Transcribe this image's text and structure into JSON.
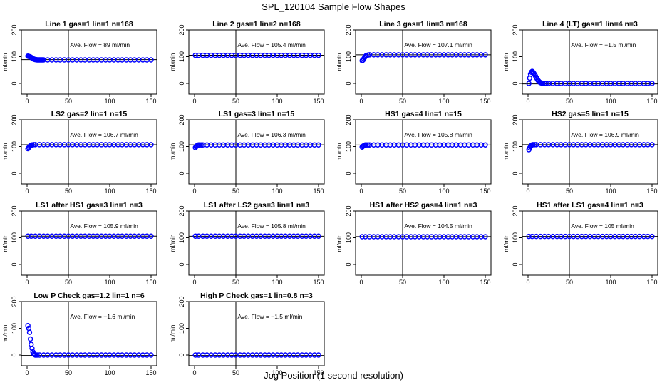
{
  "figure": {
    "title": "SPL_120104  Sample Flow Shapes",
    "xlabel": "Jog Position (1 second resolution)"
  },
  "colors": {
    "points": "#0000ff",
    "axes": "#000000"
  },
  "chart_data": [
    {
      "type": "scatter",
      "title": "Line 1 gas=1 lin=1 n=168",
      "ylabel": "ml/min",
      "xlim": [
        0,
        150
      ],
      "ylim": [
        -40,
        200
      ],
      "xticks": [
        "0",
        "50",
        "100",
        "150"
      ],
      "yticks": [
        "0",
        "100",
        "200"
      ],
      "vline": 50,
      "hline": 89,
      "annotation": "Ave. Flow =  89  ml/min",
      "x": [
        1,
        2,
        3,
        4,
        5,
        6,
        7,
        8,
        9,
        10,
        11,
        12,
        13,
        14,
        15,
        16,
        17,
        18,
        19,
        20,
        25,
        30,
        35,
        40,
        45,
        50,
        55,
        60,
        65,
        70,
        75,
        80,
        85,
        90,
        95,
        100,
        105,
        110,
        115,
        120,
        125,
        130,
        135,
        140,
        145,
        150
      ],
      "y": [
        102,
        101,
        100,
        99,
        97,
        95,
        93,
        91,
        90,
        89,
        89,
        88,
        88,
        88,
        88,
        88,
        88,
        88,
        88,
        88,
        88,
        88,
        88,
        88,
        88,
        88,
        88,
        88,
        88,
        88,
        88,
        88,
        88,
        88,
        88,
        88,
        88,
        88,
        88,
        88,
        88,
        88,
        88,
        88,
        88,
        88
      ]
    },
    {
      "type": "scatter",
      "title": "Line 2 gas=1 lin=2 n=168",
      "ylabel": "ml/min",
      "xlim": [
        0,
        150
      ],
      "ylim": [
        -40,
        200
      ],
      "xticks": [
        "0",
        "50",
        "100",
        "150"
      ],
      "yticks": [
        "0",
        "100",
        "200"
      ],
      "vline": 50,
      "hline": 105.4,
      "annotation": "Ave. Flow =  105.4  ml/min",
      "x": [
        1,
        5,
        10,
        15,
        20,
        25,
        30,
        35,
        40,
        45,
        50,
        55,
        60,
        65,
        70,
        75,
        80,
        85,
        90,
        95,
        100,
        105,
        110,
        115,
        120,
        125,
        130,
        135,
        140,
        145,
        150
      ],
      "y": [
        105,
        105,
        105,
        105,
        105,
        105,
        105,
        105,
        105,
        105,
        105,
        105,
        105,
        105,
        105,
        105,
        105,
        105,
        105,
        105,
        105,
        105,
        105,
        105,
        105,
        105,
        105,
        105,
        105,
        105,
        105
      ]
    },
    {
      "type": "scatter",
      "title": "Line 3 gas=1 lin=3 n=168",
      "ylabel": "ml/min",
      "xlim": [
        0,
        150
      ],
      "ylim": [
        -40,
        200
      ],
      "xticks": [
        "0",
        "50",
        "100",
        "150"
      ],
      "yticks": [
        "0",
        "100",
        "200"
      ],
      "vline": 50,
      "hline": 107.1,
      "annotation": "Ave. Flow =  107.1  ml/min",
      "x": [
        1,
        2,
        3,
        4,
        5,
        6,
        8,
        10,
        15,
        20,
        25,
        30,
        35,
        40,
        45,
        50,
        55,
        60,
        65,
        70,
        75,
        80,
        85,
        90,
        95,
        100,
        105,
        110,
        115,
        120,
        125,
        130,
        135,
        140,
        145,
        150
      ],
      "y": [
        85,
        87,
        92,
        97,
        101,
        104,
        106,
        107,
        107,
        107,
        107,
        107,
        107,
        107,
        107,
        107,
        107,
        107,
        107,
        107,
        107,
        107,
        107,
        107,
        107,
        107,
        107,
        107,
        107,
        107,
        107,
        107,
        107,
        107,
        107,
        107
      ]
    },
    {
      "type": "scatter",
      "title": "Line 4 (LT) gas=1 lin=4 n=3",
      "ylabel": "ml/min",
      "xlim": [
        0,
        150
      ],
      "ylim": [
        -40,
        200
      ],
      "xticks": [
        "0",
        "50",
        "100",
        "150"
      ],
      "yticks": [
        "0",
        "100",
        "200"
      ],
      "vline": 50,
      "hline": -1.5,
      "annotation": "Ave. Flow =  −1.5  ml/min",
      "x": [
        1,
        2,
        3,
        4,
        5,
        6,
        7,
        8,
        9,
        10,
        11,
        12,
        13,
        14,
        15,
        16,
        17,
        18,
        20,
        22,
        25,
        30,
        35,
        40,
        45,
        50,
        55,
        60,
        65,
        70,
        75,
        80,
        85,
        90,
        95,
        100,
        105,
        110,
        115,
        120,
        125,
        130,
        135,
        140,
        145,
        150
      ],
      "y": [
        0,
        20,
        35,
        42,
        45,
        42,
        38,
        33,
        28,
        22,
        17,
        12,
        8,
        5,
        3,
        2,
        1,
        0,
        0,
        0,
        0,
        0,
        0,
        0,
        0,
        0,
        0,
        0,
        0,
        0,
        0,
        0,
        0,
        0,
        0,
        0,
        0,
        0,
        0,
        0,
        0,
        0,
        0,
        0,
        0,
        0
      ]
    },
    {
      "type": "scatter",
      "title": "LS2 gas=2 lin=1 n=15",
      "ylabel": "ml/min",
      "xlim": [
        0,
        150
      ],
      "ylim": [
        -40,
        200
      ],
      "xticks": [
        "0",
        "50",
        "100",
        "150"
      ],
      "yticks": [
        "0",
        "100",
        "200"
      ],
      "vline": 50,
      "hline": 106.7,
      "annotation": "Ave. Flow =  106.7  ml/min",
      "x": [
        1,
        2,
        3,
        4,
        5,
        6,
        8,
        10,
        15,
        20,
        25,
        30,
        35,
        40,
        45,
        50,
        55,
        60,
        65,
        70,
        75,
        80,
        85,
        90,
        95,
        100,
        105,
        110,
        115,
        120,
        125,
        130,
        135,
        140,
        145,
        150
      ],
      "y": [
        92,
        96,
        100,
        103,
        105,
        106,
        107,
        107,
        107,
        107,
        107,
        107,
        107,
        107,
        107,
        107,
        107,
        107,
        107,
        107,
        107,
        107,
        107,
        107,
        107,
        107,
        107,
        107,
        107,
        107,
        107,
        107,
        107,
        107,
        107,
        107
      ]
    },
    {
      "type": "scatter",
      "title": "LS1 gas=3 lin=1 n=15",
      "ylabel": "ml/min",
      "xlim": [
        0,
        150
      ],
      "ylim": [
        -40,
        200
      ],
      "xticks": [
        "0",
        "50",
        "100",
        "150"
      ],
      "yticks": [
        "0",
        "100",
        "200"
      ],
      "vline": 50,
      "hline": 106.3,
      "annotation": "Ave. Flow =  106.3  ml/min",
      "x": [
        1,
        2,
        3,
        4,
        5,
        6,
        8,
        10,
        15,
        20,
        25,
        30,
        35,
        40,
        45,
        50,
        55,
        60,
        65,
        70,
        75,
        80,
        85,
        90,
        95,
        100,
        105,
        110,
        115,
        120,
        125,
        130,
        135,
        140,
        145,
        150
      ],
      "y": [
        96,
        100,
        103,
        105,
        106,
        106,
        106,
        106,
        106,
        106,
        106,
        106,
        106,
        106,
        106,
        106,
        106,
        106,
        106,
        106,
        106,
        106,
        106,
        106,
        106,
        106,
        106,
        106,
        106,
        106,
        106,
        106,
        106,
        106,
        106,
        106
      ]
    },
    {
      "type": "scatter",
      "title": "HS1 gas=4 lin=1 n=15",
      "ylabel": "ml/min",
      "xlim": [
        0,
        150
      ],
      "ylim": [
        -40,
        200
      ],
      "xticks": [
        "0",
        "50",
        "100",
        "150"
      ],
      "yticks": [
        "0",
        "100",
        "200"
      ],
      "vline": 50,
      "hline": 105.8,
      "annotation": "Ave. Flow =  105.8  ml/min",
      "x": [
        1,
        2,
        3,
        4,
        5,
        6,
        8,
        10,
        15,
        20,
        25,
        30,
        35,
        40,
        45,
        50,
        55,
        60,
        65,
        70,
        75,
        80,
        85,
        90,
        95,
        100,
        105,
        110,
        115,
        120,
        125,
        130,
        135,
        140,
        145,
        150
      ],
      "y": [
        98,
        101,
        103,
        105,
        106,
        106,
        106,
        106,
        106,
        106,
        106,
        106,
        106,
        106,
        106,
        106,
        106,
        106,
        106,
        106,
        106,
        106,
        106,
        106,
        106,
        106,
        106,
        106,
        106,
        106,
        106,
        106,
        106,
        106,
        106,
        106
      ]
    },
    {
      "type": "scatter",
      "title": "HS2 gas=5 lin=1 n=15",
      "ylabel": "ml/min",
      "xlim": [
        0,
        150
      ],
      "ylim": [
        -40,
        200
      ],
      "xticks": [
        "0",
        "50",
        "100",
        "150"
      ],
      "yticks": [
        "0",
        "100",
        "200"
      ],
      "vline": 50,
      "hline": 106.9,
      "annotation": "Ave. Flow =  106.9  ml/min",
      "x": [
        1,
        2,
        3,
        4,
        5,
        6,
        8,
        10,
        15,
        20,
        25,
        30,
        35,
        40,
        45,
        50,
        55,
        60,
        65,
        70,
        75,
        80,
        85,
        90,
        95,
        100,
        105,
        110,
        115,
        120,
        125,
        130,
        135,
        140,
        145,
        150
      ],
      "y": [
        88,
        95,
        100,
        104,
        106,
        107,
        107,
        107,
        107,
        107,
        107,
        107,
        107,
        107,
        107,
        107,
        107,
        107,
        107,
        107,
        107,
        107,
        107,
        107,
        107,
        107,
        107,
        107,
        107,
        107,
        107,
        107,
        107,
        107,
        107,
        107
      ]
    },
    {
      "type": "scatter",
      "title": "LS1 after HS1 gas=3 lin=1 n=3",
      "ylabel": "ml/min",
      "xlim": [
        0,
        150
      ],
      "ylim": [
        -40,
        200
      ],
      "xticks": [
        "0",
        "50",
        "100",
        "150"
      ],
      "yticks": [
        "0",
        "100",
        "200"
      ],
      "vline": 50,
      "hline": 105.9,
      "annotation": "Ave. Flow =  105.9  ml/min",
      "x": [
        1,
        5,
        10,
        15,
        20,
        25,
        30,
        35,
        40,
        45,
        50,
        55,
        60,
        65,
        70,
        75,
        80,
        85,
        90,
        95,
        100,
        105,
        110,
        115,
        120,
        125,
        130,
        135,
        140,
        145,
        150
      ],
      "y": [
        106,
        106,
        106,
        106,
        106,
        106,
        106,
        106,
        106,
        106,
        106,
        106,
        106,
        106,
        106,
        106,
        106,
        106,
        106,
        106,
        106,
        106,
        106,
        106,
        106,
        106,
        106,
        106,
        106,
        106,
        106
      ]
    },
    {
      "type": "scatter",
      "title": "LS1 after LS2 gas=3 lin=1 n=3",
      "ylabel": "ml/min",
      "xlim": [
        0,
        150
      ],
      "ylim": [
        -40,
        200
      ],
      "xticks": [
        "0",
        "50",
        "100",
        "150"
      ],
      "yticks": [
        "0",
        "100",
        "200"
      ],
      "vline": 50,
      "hline": 105.8,
      "annotation": "Ave. Flow =  105.8  ml/min",
      "x": [
        1,
        5,
        10,
        15,
        20,
        25,
        30,
        35,
        40,
        45,
        50,
        55,
        60,
        65,
        70,
        75,
        80,
        85,
        90,
        95,
        100,
        105,
        110,
        115,
        120,
        125,
        130,
        135,
        140,
        145,
        150
      ],
      "y": [
        106,
        106,
        106,
        106,
        106,
        106,
        106,
        106,
        106,
        106,
        106,
        106,
        106,
        106,
        106,
        106,
        106,
        106,
        106,
        106,
        106,
        106,
        106,
        106,
        106,
        106,
        106,
        106,
        106,
        106,
        106
      ]
    },
    {
      "type": "scatter",
      "title": "HS1 after HS2 gas=4 lin=1 n=3",
      "ylabel": "ml/min",
      "xlim": [
        0,
        150
      ],
      "ylim": [
        -40,
        200
      ],
      "xticks": [
        "0",
        "50",
        "100",
        "150"
      ],
      "yticks": [
        "0",
        "100",
        "200"
      ],
      "vline": 50,
      "hline": 104.5,
      "annotation": "Ave. Flow =  104.5  ml/min",
      "x": [
        1,
        5,
        10,
        15,
        20,
        25,
        30,
        35,
        40,
        45,
        50,
        55,
        60,
        65,
        70,
        75,
        80,
        85,
        90,
        95,
        100,
        105,
        110,
        115,
        120,
        125,
        130,
        135,
        140,
        145,
        150
      ],
      "y": [
        104,
        104,
        104,
        104,
        104,
        104,
        104,
        104,
        104,
        104,
        104,
        104,
        104,
        104,
        104,
        104,
        104,
        104,
        104,
        104,
        104,
        104,
        104,
        104,
        104,
        104,
        104,
        104,
        104,
        104,
        104
      ]
    },
    {
      "type": "scatter",
      "title": "HS1 after LS1 gas=4 lin=1 n=3",
      "ylabel": "ml/min",
      "xlim": [
        0,
        150
      ],
      "ylim": [
        -40,
        200
      ],
      "xticks": [
        "0",
        "50",
        "100",
        "150"
      ],
      "yticks": [
        "0",
        "100",
        "200"
      ],
      "vline": 50,
      "hline": 105,
      "annotation": "Ave. Flow =  105  ml/min",
      "x": [
        1,
        5,
        10,
        15,
        20,
        25,
        30,
        35,
        40,
        45,
        50,
        55,
        60,
        65,
        70,
        75,
        80,
        85,
        90,
        95,
        100,
        105,
        110,
        115,
        120,
        125,
        130,
        135,
        140,
        145,
        150
      ],
      "y": [
        105,
        105,
        105,
        105,
        105,
        105,
        105,
        105,
        105,
        105,
        105,
        105,
        105,
        105,
        105,
        105,
        105,
        105,
        105,
        105,
        105,
        105,
        105,
        105,
        105,
        105,
        105,
        105,
        105,
        105,
        105
      ]
    },
    {
      "type": "scatter",
      "title": "Low P Check gas=1.2 lin=1 n=6",
      "ylabel": "ml/min",
      "xlim": [
        0,
        150
      ],
      "ylim": [
        -40,
        200
      ],
      "xticks": [
        "0",
        "50",
        "100",
        "150"
      ],
      "yticks": [
        "0",
        "100",
        "200"
      ],
      "vline": 50,
      "hline": -1.6,
      "annotation": "Ave. Flow =  −1.6  ml/min",
      "x": [
        1,
        2,
        3,
        4,
        5,
        6,
        7,
        8,
        9,
        10,
        12,
        15,
        20,
        25,
        30,
        35,
        40,
        45,
        50,
        55,
        60,
        65,
        70,
        75,
        80,
        85,
        90,
        95,
        100,
        105,
        110,
        115,
        120,
        125,
        130,
        135,
        140,
        145,
        150
      ],
      "y": [
        110,
        100,
        85,
        60,
        40,
        25,
        12,
        5,
        2,
        0,
        0,
        0,
        0,
        0,
        0,
        0,
        0,
        0,
        0,
        0,
        0,
        0,
        0,
        0,
        0,
        0,
        0,
        0,
        0,
        0,
        0,
        0,
        0,
        0,
        0,
        0,
        0,
        0,
        0
      ]
    },
    {
      "type": "scatter",
      "title": "High P Check gas=1 lin=0.8 n=3",
      "ylabel": "ml/min",
      "xlim": [
        0,
        150
      ],
      "ylim": [
        -40,
        200
      ],
      "xticks": [
        "0",
        "50",
        "100",
        "150"
      ],
      "yticks": [
        "0",
        "100",
        "200"
      ],
      "vline": 50,
      "hline": -1.5,
      "annotation": "Ave. Flow =  −1.5  ml/min",
      "x": [
        1,
        5,
        10,
        15,
        20,
        25,
        30,
        35,
        40,
        45,
        50,
        55,
        60,
        65,
        70,
        75,
        80,
        85,
        90,
        95,
        100,
        105,
        110,
        115,
        120,
        125,
        130,
        135,
        140,
        145,
        150
      ],
      "y": [
        0,
        0,
        0,
        0,
        0,
        0,
        0,
        0,
        0,
        0,
        0,
        0,
        0,
        0,
        0,
        0,
        0,
        0,
        0,
        0,
        0,
        0,
        0,
        0,
        0,
        0,
        0,
        0,
        0,
        0,
        0
      ]
    }
  ]
}
